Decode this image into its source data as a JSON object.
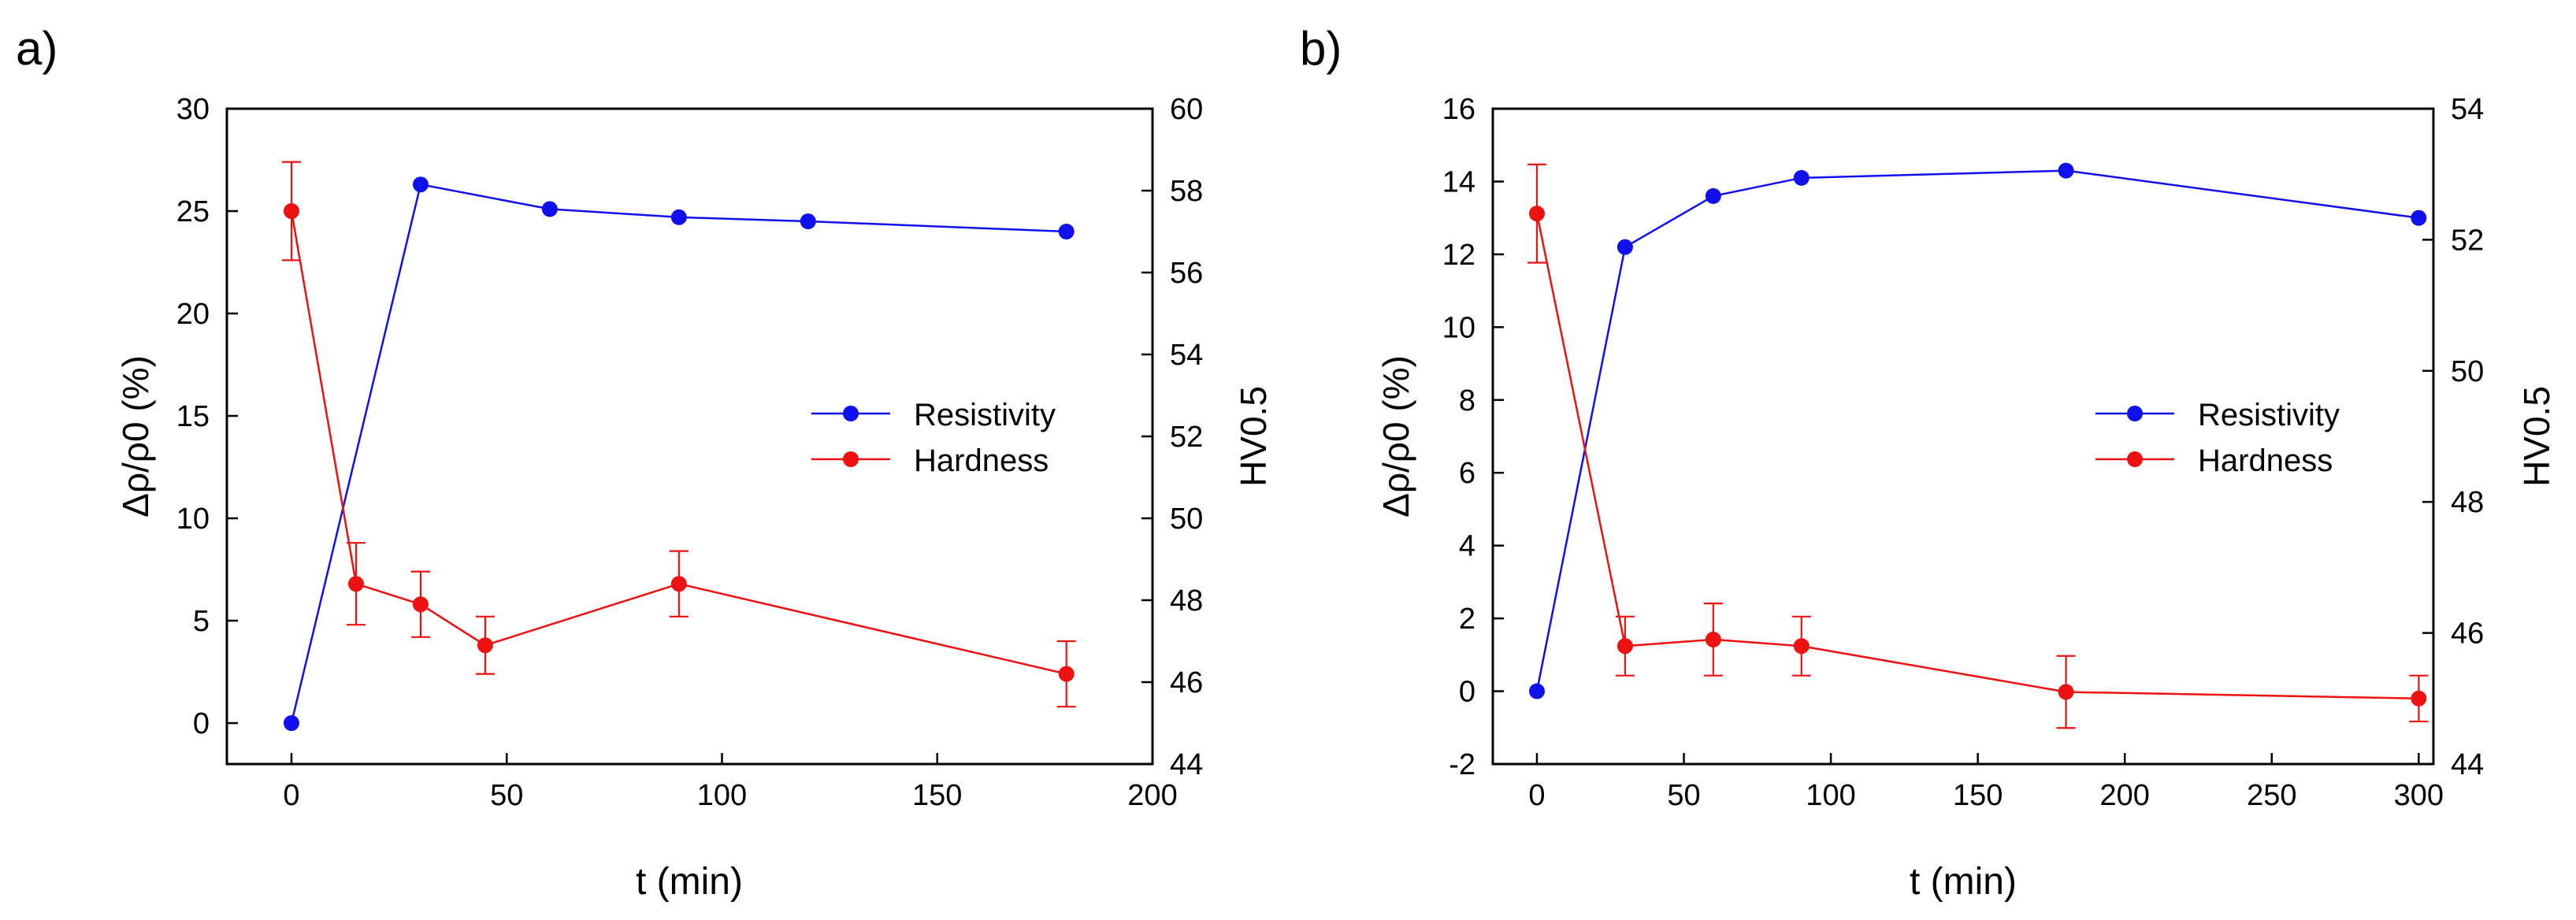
{
  "figure": {
    "panels": [
      "a)",
      "b)"
    ]
  },
  "colors": {
    "resistivity": "#1010ee",
    "hardness": "#ee1111",
    "axis": "#000000"
  },
  "chart_data": [
    {
      "type": "line",
      "panel_label": "a)",
      "xlabel": "t (min)",
      "ylabel_left": "Δρ/ρ0 (%)",
      "ylabel_right": "HV0.5",
      "xlim": [
        -15,
        200
      ],
      "ylim_left": [
        -2,
        30
      ],
      "ylim_right": [
        44,
        60
      ],
      "xticks": [
        0,
        50,
        100,
        150,
        200
      ],
      "yticks_left": [
        0,
        5,
        10,
        15,
        20,
        25,
        30
      ],
      "yticks_right": [
        44,
        46,
        48,
        50,
        52,
        54,
        56,
        58,
        60
      ],
      "legend": [
        "Resistivity",
        "Hardness"
      ],
      "series": [
        {
          "name": "Resistivity",
          "axis": "left",
          "x": [
            0,
            30,
            60,
            90,
            120,
            180
          ],
          "y": [
            0,
            26.3,
            25.1,
            24.7,
            24.5,
            24.0
          ]
        },
        {
          "name": "Hardness",
          "axis": "right",
          "x": [
            0,
            15,
            30,
            45,
            90,
            180
          ],
          "y": [
            57.5,
            48.4,
            47.9,
            46.9,
            48.4,
            46.2
          ],
          "err": [
            1.2,
            1.0,
            0.8,
            0.7,
            0.8,
            0.8
          ]
        }
      ]
    },
    {
      "type": "line",
      "panel_label": "b)",
      "xlabel": "t (min)",
      "ylabel_left": "Δρ/ρ0 (%)",
      "ylabel_right": "HV0.5",
      "xlim": [
        -15,
        305
      ],
      "ylim_left": [
        -2,
        16
      ],
      "ylim_right": [
        44,
        54
      ],
      "xticks": [
        0,
        50,
        100,
        150,
        200,
        250,
        300
      ],
      "yticks_left": [
        -2,
        0,
        2,
        4,
        6,
        8,
        10,
        12,
        14,
        16
      ],
      "yticks_right": [
        44,
        46,
        48,
        50,
        52,
        54
      ],
      "legend": [
        "Resistivity",
        "Hardness"
      ],
      "series": [
        {
          "name": "Resistivity",
          "axis": "left",
          "x": [
            0,
            30,
            60,
            90,
            180,
            300
          ],
          "y": [
            0,
            12.2,
            13.6,
            14.1,
            14.3,
            13.0
          ]
        },
        {
          "name": "Hardness",
          "axis": "right",
          "x": [
            0,
            30,
            60,
            90,
            180,
            300
          ],
          "y": [
            52.4,
            45.8,
            45.9,
            45.8,
            45.1,
            45.0
          ],
          "err": [
            0.75,
            0.45,
            0.55,
            0.45,
            0.55,
            0.35
          ]
        }
      ]
    }
  ]
}
